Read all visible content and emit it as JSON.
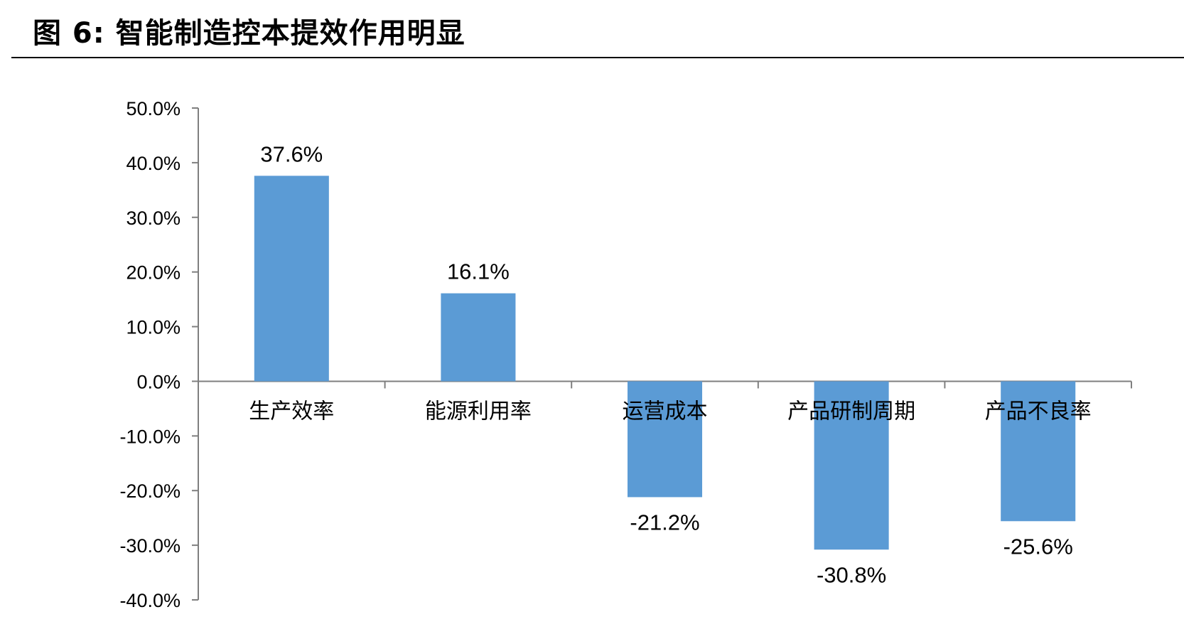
{
  "figure": {
    "title": "图 6:  智能制造控本提效作用明显"
  },
  "chart_data": {
    "type": "bar",
    "categories": [
      "生产效率",
      "能源利用率",
      "运营成本",
      "产品研制周期",
      "产品不良率"
    ],
    "values": [
      37.6,
      16.1,
      -21.2,
      -30.8,
      -25.6
    ],
    "data_labels": [
      "37.6%",
      "16.1%",
      "-21.2%",
      "-30.8%",
      "-25.6%"
    ],
    "ylim": [
      -40,
      50
    ],
    "yticks": [
      50,
      40,
      30,
      20,
      10,
      0,
      -10,
      -20,
      -30,
      -40
    ],
    "ytick_labels": [
      "50.0%",
      "40.0%",
      "30.0%",
      "20.0%",
      "10.0%",
      "0.0%",
      "-10.0%",
      "-20.0%",
      "-30.0%",
      "-40.0%"
    ],
    "bar_color": "#5b9bd5",
    "grid": false,
    "legend": "none"
  }
}
